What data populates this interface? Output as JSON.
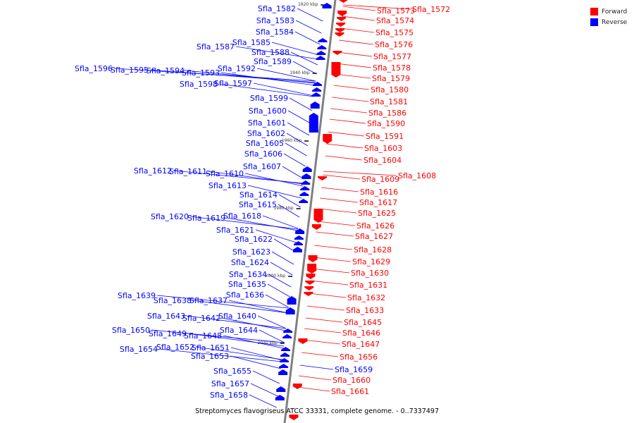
{
  "colors": {
    "forward": "#ff0000",
    "reverse": "#0000ff",
    "axis": "#808080"
  },
  "legend": [
    {
      "label": "Forward",
      "color": "#ff0000"
    },
    {
      "label": "Reverse",
      "color": "#0000ff"
    }
  ],
  "caption": "Streptomyces flavogriseus ATCC 33331, complete genome. - 0..7337497",
  "ticks": [
    "1920 kbp",
    "1940 kbp",
    "1960 kbp",
    "1980 kbp",
    "2000 kbp",
    "2020 kbp"
  ],
  "genes_reverse": [
    "Sfla_1582",
    "Sfla_1583",
    "Sfla_1584",
    "Sfla_1585",
    "Sfla_1587",
    "Sfla_1588",
    "Sfla_1589",
    "Sfla_1596",
    "Sfla_1595",
    "Sfla_1594",
    "Sfla_1593",
    "Sfla_1592",
    "Sfla_1598",
    "Sfla_1597",
    "Sfla_1599",
    "Sfla_1600",
    "Sfla_1601",
    "Sfla_1602",
    "Sfla_1605",
    "Sfla_1606",
    "Sfla_1607",
    "Sfla_1612",
    "Sfla_1611",
    "Sfla_1610",
    "Sfla_1613",
    "Sfla_1614",
    "Sfla_1615",
    "Sfla_1620",
    "Sfla_1619",
    "Sfla_1618",
    "Sfla_1621",
    "Sfla_1622",
    "Sfla_1623",
    "Sfla_1624",
    "Sfla_1634",
    "Sfla_1635",
    "Sfla_1639",
    "Sfla_1638",
    "Sfla_1637",
    "Sfla_1636",
    "Sfla_1643",
    "Sfla_1642",
    "Sfla_1640",
    "Sfla_1650",
    "Sfla_1649",
    "Sfla_1648",
    "Sfla_1644",
    "Sfla_1654",
    "Sfla_1652",
    "Sfla_1651",
    "Sfla_1653",
    "Sfla_1655",
    "Sfla_1657",
    "Sfla_1658"
  ],
  "genes_forward": [
    "Sfla_1573",
    "Sfla_1572",
    "Sfla_1574",
    "Sfla_1575",
    "Sfla_1576",
    "Sfla_1577",
    "Sfla_1578",
    "Sfla_1579",
    "Sfla_1580",
    "Sfla_1581",
    "Sfla_1586",
    "Sfla_1590",
    "Sfla_1591",
    "Sfla_1603",
    "Sfla_1604",
    "Sfla_1609",
    "Sfla_1608",
    "Sfla_1616",
    "Sfla_1617",
    "Sfla_1625",
    "Sfla_1626",
    "Sfla_1627",
    "Sfla_1628",
    "Sfla_1629",
    "Sfla_1630",
    "Sfla_1631",
    "Sfla_1632",
    "Sfla_1633",
    "Sfla_1645",
    "Sfla_1646",
    "Sfla_1647",
    "Sfla_1656",
    "Sfla_1660",
    "Sfla_1661"
  ],
  "genes_reverse_right": [
    "Sfla_1659"
  ]
}
